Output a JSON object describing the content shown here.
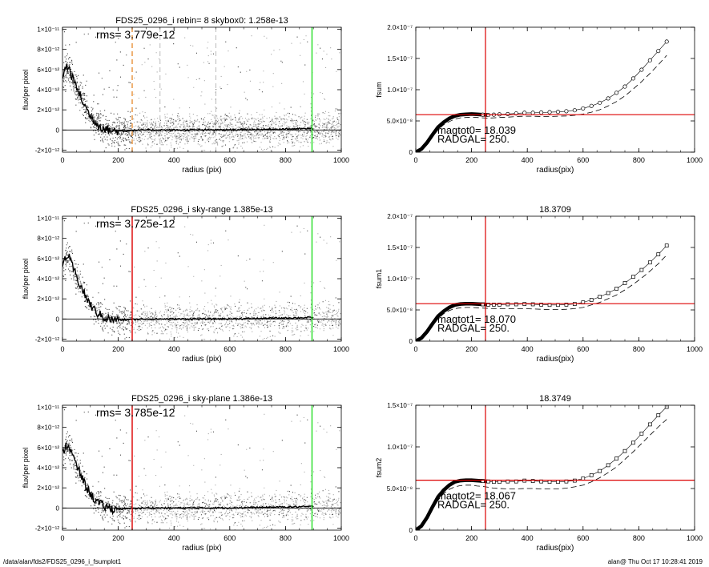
{
  "footer": {
    "left": "/data/alan/fds2/FDS25_0296_i_fsumplot1",
    "right": "alan@  Thu Oct 17 10:28:41 2019"
  },
  "chart_data": [
    {
      "type": "scatter",
      "panel": "left-1",
      "title": "FDS25_0296_i rebin= 8    skybox0:  1.258e-13",
      "annotation": "rms= 3.779e-12",
      "xlabel": "radius (pix)",
      "ylabel": "flux/per pixel",
      "xlim": [
        0,
        1000
      ],
      "ylim": [
        -2.2e-12,
        1.02e-11
      ],
      "xticks": [
        0,
        200,
        400,
        600,
        800,
        1000
      ],
      "xtick_labels": [
        "0",
        "200",
        "400",
        "600",
        "800",
        "1000"
      ],
      "yticks": [
        -2e-12,
        0,
        2e-12,
        4e-12,
        6e-12,
        8e-12,
        1e-11
      ],
      "ytick_labels": [
        "-2×10⁻¹²",
        "0",
        "2×10⁻¹²",
        "4×10⁻¹²",
        "6×10⁻¹²",
        "8×10⁻¹²",
        "1×10⁻¹¹"
      ],
      "profile": {
        "x": [
          0,
          10,
          20,
          30,
          40,
          60,
          80,
          100,
          120,
          140,
          160,
          180,
          200,
          220,
          250,
          300,
          400,
          500,
          600,
          700,
          800,
          900
        ],
        "y": [
          5.3e-12,
          6.1e-12,
          6.3e-12,
          5.6e-12,
          4.9e-12,
          3.6e-12,
          2.4e-12,
          1.4e-12,
          7e-13,
          3e-13,
          5e-14,
          -1e-13,
          -1e-13,
          -1e-13,
          -5e-14,
          0,
          0,
          0,
          2e-14,
          5e-14,
          1e-13,
          1.5e-13
        ]
      },
      "vlines": [
        {
          "x": 250,
          "color": "#e8923a",
          "style": "dashed"
        },
        {
          "x": 350,
          "color": "#aaaaaa",
          "style": "dashed"
        },
        {
          "x": 550,
          "color": "#aaaaaa",
          "style": "dashed"
        },
        {
          "x": 895,
          "color": "#22dd22",
          "style": "solid"
        }
      ],
      "scatter_colors": {
        "dark": "#444444",
        "light": "#a8a8a8"
      }
    },
    {
      "type": "line",
      "panel": "right-1",
      "title": "",
      "xlabel": "radius(pix)",
      "ylabel": "fsum",
      "xlim": [
        0,
        1000
      ],
      "ylim": [
        0,
        2e-07
      ],
      "xticks": [
        0,
        200,
        400,
        600,
        800,
        1000
      ],
      "xtick_labels": [
        "0",
        "200",
        "400",
        "600",
        "800",
        "1000"
      ],
      "yticks": [
        0,
        5e-08,
        1e-07,
        1.5e-07,
        2e-07
      ],
      "ytick_labels": [
        "0",
        "5.0×10⁻⁸",
        "1.0×10⁻⁷",
        "1.5×10⁻⁷",
        "2.0×10⁻⁷"
      ],
      "marker": "circle",
      "hline": 6e-08,
      "vline": 250,
      "line_color": "#dd0000",
      "annotations": [
        "magtot0=  18.039",
        "RADGAL=   250."
      ],
      "x": [
        0,
        20,
        40,
        60,
        80,
        100,
        120,
        140,
        160,
        180,
        200,
        220,
        240,
        260,
        280,
        300,
        330,
        360,
        390,
        420,
        450,
        480,
        510,
        540,
        570,
        600,
        630,
        660,
        690,
        720,
        750,
        780,
        810,
        840,
        870,
        900
      ],
      "y": [
        0,
        5e-09,
        1.5e-08,
        2.8e-08,
        4e-08,
        4.8e-08,
        5.4e-08,
        5.8e-08,
        6e-08,
        6.05e-08,
        6.1e-08,
        6.05e-08,
        6e-08,
        5.95e-08,
        6e-08,
        6.05e-08,
        6.1e-08,
        6.2e-08,
        6.3e-08,
        6.3e-08,
        6.35e-08,
        6.4e-08,
        6.45e-08,
        6.55e-08,
        6.7e-08,
        7e-08,
        7.4e-08,
        7.9e-08,
        8.6e-08,
        9.5e-08,
        1.05e-07,
        1.18e-07,
        1.32e-07,
        1.47e-07,
        1.62e-07,
        1.77e-07
      ],
      "y_lower": [
        0,
        4.5e-09,
        1.35e-08,
        2.5e-08,
        3.6e-08,
        4.4e-08,
        4.9e-08,
        5.3e-08,
        5.5e-08,
        5.55e-08,
        5.6e-08,
        5.55e-08,
        5.5e-08,
        5.45e-08,
        5.5e-08,
        5.55e-08,
        5.6e-08,
        5.7e-08,
        5.75e-08,
        5.75e-08,
        5.7e-08,
        5.7e-08,
        5.75e-08,
        5.8e-08,
        5.9e-08,
        6.1e-08,
        6.4e-08,
        6.8e-08,
        7.4e-08,
        8.1e-08,
        9e-08,
        1.01e-07,
        1.13e-07,
        1.26e-07,
        1.4e-07,
        1.55e-07
      ]
    },
    {
      "type": "scatter",
      "panel": "left-2",
      "title": "FDS25_0296_i sky-range  1.385e-13",
      "annotation": "rms= 3.725e-12",
      "xlabel": "radius (pix)",
      "ylabel": "flux/per pixel",
      "xlim": [
        0,
        1000
      ],
      "ylim": [
        -2.2e-12,
        1.02e-11
      ],
      "xticks": [
        0,
        200,
        400,
        600,
        800,
        1000
      ],
      "xtick_labels": [
        "0",
        "200",
        "400",
        "600",
        "800",
        "1000"
      ],
      "yticks": [
        -2e-12,
        0,
        2e-12,
        4e-12,
        6e-12,
        8e-12,
        1e-11
      ],
      "ytick_labels": [
        "-2×10⁻¹²",
        "0",
        "2×10⁻¹²",
        "4×10⁻¹²",
        "6×10⁻¹²",
        "8×10⁻¹²",
        "1×10⁻¹¹"
      ],
      "profile": {
        "x": [
          0,
          10,
          20,
          30,
          40,
          60,
          80,
          100,
          120,
          140,
          160,
          180,
          200,
          220,
          250,
          300,
          400,
          500,
          600,
          700,
          800,
          900
        ],
        "y": [
          5.3e-12,
          6.1e-12,
          6.3e-12,
          5.6e-12,
          4.9e-12,
          3.6e-12,
          2.4e-12,
          1.4e-12,
          7e-13,
          3e-13,
          5e-14,
          -1e-13,
          -1e-13,
          -1e-13,
          -5e-14,
          0,
          0,
          0,
          2e-14,
          5e-14,
          1e-13,
          1.5e-13
        ]
      },
      "vlines": [
        {
          "x": 250,
          "color": "#dd0000",
          "style": "solid"
        },
        {
          "x": 895,
          "color": "#22dd22",
          "style": "solid"
        }
      ],
      "scatter_colors": {
        "dark": "#444444",
        "light": "#a8a8a8"
      }
    },
    {
      "type": "line",
      "panel": "right-2",
      "title": "18.3709",
      "xlabel": "radius(pix)",
      "ylabel": "fsum1",
      "xlim": [
        0,
        1000
      ],
      "ylim": [
        0,
        2e-07
      ],
      "xticks": [
        0,
        200,
        400,
        600,
        800,
        1000
      ],
      "xtick_labels": [
        "0",
        "200",
        "400",
        "600",
        "800",
        "1000"
      ],
      "yticks": [
        0,
        5e-08,
        1e-07,
        1.5e-07,
        2e-07
      ],
      "ytick_labels": [
        "0",
        "5.0×10⁻⁸",
        "1.0×10⁻⁷",
        "1.5×10⁻⁷",
        "2.0×10⁻⁷"
      ],
      "marker": "square",
      "hline": 6e-08,
      "vline": 250,
      "line_color": "#dd0000",
      "annotations": [
        "magtot1=  18.070",
        "RADGAL=   250."
      ],
      "x": [
        0,
        20,
        40,
        60,
        80,
        100,
        120,
        140,
        160,
        180,
        200,
        220,
        240,
        260,
        280,
        300,
        330,
        360,
        390,
        420,
        450,
        480,
        510,
        540,
        570,
        600,
        630,
        660,
        690,
        720,
        750,
        780,
        810,
        840,
        870,
        900
      ],
      "y": [
        0,
        5e-09,
        1.5e-08,
        2.8e-08,
        4e-08,
        4.8e-08,
        5.4e-08,
        5.8e-08,
        5.95e-08,
        6e-08,
        6e-08,
        5.95e-08,
        5.9e-08,
        5.85e-08,
        5.85e-08,
        5.85e-08,
        5.9e-08,
        5.9e-08,
        5.95e-08,
        5.9e-08,
        5.85e-08,
        5.8e-08,
        5.8e-08,
        5.85e-08,
        5.95e-08,
        6.2e-08,
        6.6e-08,
        7.1e-08,
        7.7e-08,
        8.4e-08,
        9.3e-08,
        1.03e-07,
        1.14e-07,
        1.26e-07,
        1.39e-07,
        1.53e-07
      ],
      "y_lower": [
        0,
        4.5e-09,
        1.35e-08,
        2.5e-08,
        3.6e-08,
        4.4e-08,
        4.9e-08,
        5.2e-08,
        5.35e-08,
        5.4e-08,
        5.4e-08,
        5.35e-08,
        5.3e-08,
        5.25e-08,
        5.2e-08,
        5.2e-08,
        5.2e-08,
        5.2e-08,
        5.2e-08,
        5.15e-08,
        5.1e-08,
        5.05e-08,
        5.05e-08,
        5.1e-08,
        5.2e-08,
        5.4e-08,
        5.8e-08,
        6.2e-08,
        6.8e-08,
        7.4e-08,
        8.2e-08,
        9.1e-08,
        1.01e-07,
        1.12e-07,
        1.24e-07,
        1.38e-07
      ]
    },
    {
      "type": "scatter",
      "panel": "left-3",
      "title": "FDS25_0296_i sky-plane  1.386e-13",
      "annotation": "rms= 3.785e-12",
      "xlabel": "radius (pix)",
      "ylabel": "flux/per pixel",
      "xlim": [
        0,
        1000
      ],
      "ylim": [
        -2.2e-12,
        1.02e-11
      ],
      "xticks": [
        0,
        200,
        400,
        600,
        800,
        1000
      ],
      "xtick_labels": [
        "0",
        "200",
        "400",
        "600",
        "800",
        "1000"
      ],
      "yticks": [
        -2e-12,
        0,
        2e-12,
        4e-12,
        6e-12,
        8e-12,
        1e-11
      ],
      "ytick_labels": [
        "-2×10⁻¹²",
        "0",
        "2×10⁻¹²",
        "4×10⁻¹²",
        "6×10⁻¹²",
        "8×10⁻¹²",
        "1×10⁻¹¹"
      ],
      "profile": {
        "x": [
          0,
          10,
          20,
          30,
          40,
          60,
          80,
          100,
          120,
          140,
          160,
          180,
          200,
          220,
          250,
          300,
          400,
          500,
          600,
          700,
          800,
          900
        ],
        "y": [
          5.3e-12,
          6.1e-12,
          6.3e-12,
          5.6e-12,
          4.9e-12,
          3.6e-12,
          2.4e-12,
          1.4e-12,
          7e-13,
          3e-13,
          5e-14,
          -1e-13,
          -1e-13,
          -1e-13,
          -5e-14,
          0,
          0,
          0,
          2e-14,
          5e-14,
          1e-13,
          1.5e-13
        ]
      },
      "vlines": [
        {
          "x": 250,
          "color": "#dd0000",
          "style": "solid"
        },
        {
          "x": 895,
          "color": "#22dd22",
          "style": "solid"
        }
      ],
      "scatter_colors": {
        "dark": "#444444",
        "light": "#a8a8a8"
      }
    },
    {
      "type": "line",
      "panel": "right-3",
      "title": "18.3749",
      "xlabel": "radius(pix)",
      "ylabel": "fsum2",
      "xlim": [
        0,
        1000
      ],
      "ylim": [
        0,
        1.5e-07
      ],
      "xticks": [
        0,
        200,
        400,
        600,
        800,
        1000
      ],
      "xtick_labels": [
        "0",
        "200",
        "400",
        "600",
        "800",
        "1000"
      ],
      "yticks": [
        0,
        5e-08,
        1e-07,
        1.5e-07
      ],
      "ytick_labels": [
        "0",
        "5.0×10⁻⁸",
        "1.0×10⁻⁷",
        "1.5×10⁻⁷"
      ],
      "marker": "square",
      "hline": 6e-08,
      "vline": 250,
      "line_color": "#dd0000",
      "annotations": [
        "magtot2=  18.067",
        "RADGAL=   250."
      ],
      "x": [
        0,
        20,
        40,
        60,
        80,
        100,
        120,
        140,
        160,
        180,
        200,
        220,
        240,
        260,
        280,
        300,
        330,
        360,
        390,
        420,
        450,
        480,
        510,
        540,
        570,
        600,
        630,
        660,
        690,
        720,
        750,
        780,
        810,
        840,
        870,
        900
      ],
      "y": [
        0,
        5e-09,
        1.5e-08,
        2.8e-08,
        4e-08,
        4.8e-08,
        5.4e-08,
        5.8e-08,
        5.95e-08,
        6e-08,
        6e-08,
        5.95e-08,
        5.9e-08,
        5.85e-08,
        5.8e-08,
        5.8e-08,
        5.85e-08,
        5.85e-08,
        5.95e-08,
        5.9e-08,
        5.85e-08,
        5.8e-08,
        5.8e-08,
        5.85e-08,
        5.95e-08,
        6.2e-08,
        6.6e-08,
        7.1e-08,
        7.8e-08,
        8.6e-08,
        9.5e-08,
        1.05e-07,
        1.16e-07,
        1.27e-07,
        1.38e-07,
        1.48e-07
      ],
      "y_lower": [
        0,
        4.5e-09,
        1.35e-08,
        2.5e-08,
        3.6e-08,
        4.4e-08,
        4.9e-08,
        5.2e-08,
        5.35e-08,
        5.4e-08,
        5.4e-08,
        5.3e-08,
        5.25e-08,
        5.15e-08,
        5.05e-08,
        5e-08,
        4.95e-08,
        4.95e-08,
        5e-08,
        5e-08,
        4.95e-08,
        4.95e-08,
        4.95e-08,
        5.05e-08,
        5.2e-08,
        5.4e-08,
        5.8e-08,
        6.3e-08,
        6.9e-08,
        7.6e-08,
        8.5e-08,
        9.4e-08,
        1.04e-07,
        1.14e-07,
        1.24e-07,
        1.33e-07
      ]
    }
  ]
}
